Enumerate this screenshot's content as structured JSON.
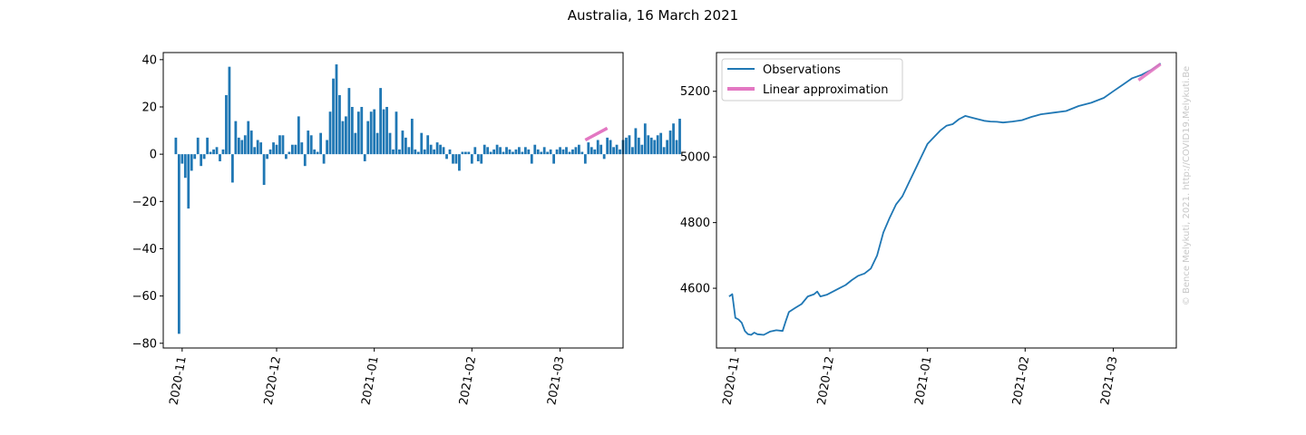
{
  "figure": {
    "title": "Australia, 16 March 2021",
    "watermark": "© Bence Melykuti, 2021. http://COVID19.Melykuti.Be"
  },
  "colors": {
    "bar": "#1f77b4",
    "observations": "#1f77b4",
    "fit": "#e377c2",
    "axis": "#000000"
  },
  "chart_data": [
    {
      "type": "bar",
      "x_axis_type": "date",
      "xlim": [
        "2020-10-26",
        "2021-03-21"
      ],
      "ylim": [
        -82,
        43
      ],
      "xticks": [
        "2020-11-01",
        "2020-12-01",
        "2021-01-01",
        "2021-02-01",
        "2021-03-01"
      ],
      "xtick_labels": [
        "2020-11",
        "2020-12",
        "2021-01",
        "2021-02",
        "2021-03"
      ],
      "yticks": [
        -80,
        -60,
        -40,
        -20,
        0,
        20,
        40
      ],
      "ytick_labels": [
        "−80",
        "−60",
        "−40",
        "−20",
        "0",
        "20",
        "40"
      ],
      "start_date": "2020-10-30",
      "values": [
        7,
        -76,
        -4,
        -10,
        -23,
        -7,
        -2,
        7,
        -5,
        -2,
        7,
        1,
        2,
        3,
        -3,
        2,
        25,
        37,
        -12,
        14,
        7,
        6,
        8,
        14,
        10,
        3,
        6,
        5,
        -13,
        -2,
        2,
        5,
        4,
        8,
        8,
        -2,
        1,
        4,
        4,
        16,
        5,
        -5,
        10,
        8,
        2,
        1,
        9,
        -4,
        6,
        18,
        32,
        38,
        25,
        14,
        16,
        28,
        20,
        9,
        18,
        20,
        -3,
        14,
        18,
        19,
        9,
        28,
        19,
        20,
        9,
        2,
        18,
        2,
        10,
        7,
        3,
        15,
        2,
        1,
        9,
        2,
        8,
        4,
        2,
        5,
        4,
        3,
        -2,
        2,
        -4,
        -4,
        -7,
        1,
        1,
        1,
        -4,
        3,
        -3,
        -4,
        4,
        3,
        1,
        2,
        4,
        3,
        1,
        3,
        2,
        1,
        2,
        3,
        1,
        3,
        2,
        -4,
        4,
        2,
        1,
        3,
        1,
        2,
        -4,
        2,
        3,
        2,
        3,
        1,
        2,
        3,
        4,
        1,
        -4,
        5,
        3,
        2,
        6,
        4,
        -2,
        7,
        6,
        3,
        4,
        2,
        6,
        7,
        8,
        3,
        11,
        7,
        4,
        13,
        8,
        7,
        6,
        8,
        9,
        3,
        6,
        10,
        13,
        6,
        15
      ],
      "fit": {
        "x": [
          "2021-03-09",
          "2021-03-16"
        ],
        "y": [
          6,
          11
        ]
      }
    },
    {
      "type": "line",
      "x_axis_type": "date",
      "xlim": [
        "2020-10-26",
        "2021-03-21"
      ],
      "ylim": [
        4418,
        5318
      ],
      "xticks": [
        "2020-11-01",
        "2020-12-01",
        "2021-01-01",
        "2021-02-01",
        "2021-03-01"
      ],
      "xtick_labels": [
        "2020-11",
        "2020-12",
        "2021-01",
        "2021-02",
        "2021-03"
      ],
      "yticks": [
        4600,
        4800,
        5000,
        5200
      ],
      "ytick_labels": [
        "4600",
        "4800",
        "5000",
        "5200"
      ],
      "legend": {
        "placement": "upper-left",
        "entries": [
          "Observations",
          "Linear approximation"
        ]
      },
      "series": [
        {
          "name": "Observations",
          "x": [
            "2020-10-30",
            "2020-10-31",
            "2020-11-01",
            "2020-11-02",
            "2020-11-03",
            "2020-11-04",
            "2020-11-05",
            "2020-11-06",
            "2020-11-07",
            "2020-11-08",
            "2020-11-10",
            "2020-11-12",
            "2020-11-14",
            "2020-11-16",
            "2020-11-17",
            "2020-11-18",
            "2020-11-20",
            "2020-11-22",
            "2020-11-24",
            "2020-11-26",
            "2020-11-27",
            "2020-11-28",
            "2020-11-30",
            "2020-12-02",
            "2020-12-04",
            "2020-12-06",
            "2020-12-08",
            "2020-12-10",
            "2020-12-12",
            "2020-12-14",
            "2020-12-16",
            "2020-12-18",
            "2020-12-20",
            "2020-12-22",
            "2020-12-24",
            "2020-12-26",
            "2020-12-28",
            "2020-12-30",
            "2021-01-01",
            "2021-01-03",
            "2021-01-05",
            "2021-01-07",
            "2021-01-09",
            "2021-01-11",
            "2021-01-13",
            "2021-01-15",
            "2021-01-17",
            "2021-01-19",
            "2021-01-21",
            "2021-01-23",
            "2021-01-25",
            "2021-01-28",
            "2021-01-31",
            "2021-02-03",
            "2021-02-06",
            "2021-02-10",
            "2021-02-14",
            "2021-02-18",
            "2021-02-22",
            "2021-02-26",
            "2021-03-01",
            "2021-03-04",
            "2021-03-07",
            "2021-03-10",
            "2021-03-13",
            "2021-03-16"
          ],
          "y": [
            4575,
            4582,
            4510,
            4505,
            4495,
            4470,
            4460,
            4458,
            4465,
            4460,
            4458,
            4468,
            4472,
            4470,
            4500,
            4528,
            4540,
            4552,
            4575,
            4582,
            4590,
            4575,
            4580,
            4590,
            4600,
            4610,
            4625,
            4638,
            4645,
            4660,
            4700,
            4770,
            4815,
            4855,
            4880,
            4920,
            4960,
            5000,
            5040,
            5060,
            5080,
            5095,
            5100,
            5115,
            5125,
            5120,
            5115,
            5110,
            5108,
            5107,
            5105,
            5108,
            5112,
            5122,
            5130,
            5135,
            5140,
            5155,
            5165,
            5180,
            5200,
            5220,
            5240,
            5250,
            5265,
            5285
          ]
        },
        {
          "name": "Linear approximation",
          "x": [
            "2021-03-09",
            "2021-03-16"
          ],
          "y": [
            5234,
            5283
          ]
        }
      ]
    }
  ]
}
